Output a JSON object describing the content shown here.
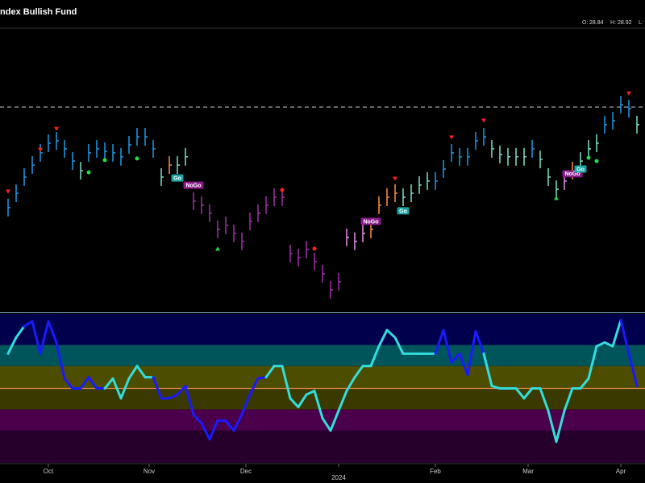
{
  "chart_data": {
    "type": "price-bars",
    "title": "Index Bullish Fund",
    "ohlc_legend": [
      {
        "label": "O:",
        "value": 28.84
      },
      {
        "label": "H:",
        "value": 28.92
      },
      {
        "label": "L:"
      }
    ],
    "xlim": [
      -1,
      79
    ],
    "xticks": [
      {
        "value": 5,
        "label": "Oct"
      },
      {
        "value": 17.5,
        "label": "Nov"
      },
      {
        "value": 29.5,
        "label": "Dec"
      },
      {
        "value": 41,
        "label": "2024"
      },
      {
        "value": 53,
        "label": "Feb"
      },
      {
        "value": 64.5,
        "label": "Mar"
      },
      {
        "value": 76,
        "label": "Apr"
      }
    ],
    "ylim": [
      20,
      32
    ],
    "reference_line": 28.64,
    "values": [
      24.36,
      24.97,
      25.66,
      26.17,
      26.69,
      27.1,
      27.2,
      26.86,
      26.34,
      25.93,
      26.69,
      26.86,
      26.76,
      26.69,
      26.52,
      27.03,
      27.37,
      27.37,
      26.86,
      25.66,
      26.17,
      26.17,
      26.52,
      24.63,
      24.46,
      24.12,
      23.43,
      23.6,
      23.26,
      22.92,
      23.77,
      24.12,
      24.46,
      24.8,
      24.8,
      22.4,
      22.23,
      22.57,
      22.06,
      21.54,
      20.86,
      21.2,
      23.09,
      22.92,
      23.26,
      23.43,
      24.46,
      24.8,
      24.97,
      24.8,
      24.97,
      25.32,
      25.49,
      25.49,
      26.0,
      26.69,
      26.52,
      26.52,
      27.2,
      27.37,
      26.86,
      26.62,
      26.52,
      26.52,
      26.52,
      26.86,
      26.41,
      25.66,
      25.14,
      25.49,
      25.93,
      26.34,
      26.86,
      27.1,
      27.89,
      28.06,
      28.74,
      28.57,
      27.89
    ],
    "bar_colors": [
      "#1e9be6",
      "#1e9be6",
      "#1e9be6",
      "#1e9be6",
      "#1e9be6",
      "#1e9be6",
      "#1e9be6",
      "#1e9be6",
      "#1e9be6",
      "#7fe0c8",
      "#1e9be6",
      "#1e9be6",
      "#1e9be6",
      "#1e9be6",
      "#1e9be6",
      "#1e9be6",
      "#1e9be6",
      "#1e9be6",
      "#1e9be6",
      "#7fe0c8",
      "#ff9040",
      "#7fe0c8",
      "#7fe0c8",
      "#a030a8",
      "#a030a8",
      "#a030a8",
      "#a030a8",
      "#a030a8",
      "#a030a8",
      "#a030a8",
      "#a030a8",
      "#a030a8",
      "#a030a8",
      "#a030a8",
      "#a030a8",
      "#a030a8",
      "#a030a8",
      "#a030a8",
      "#a030a8",
      "#a030a8",
      "#a030a8",
      "#a030a8",
      "#e890e8",
      "#e890e8",
      "#e890e8",
      "#ff9040",
      "#ff9040",
      "#ff9040",
      "#ff9040",
      "#7fe0c8",
      "#7fe0c8",
      "#7fe0c8",
      "#7fe0c8",
      "#1e9be6",
      "#1e9be6",
      "#1e9be6",
      "#1e9be6",
      "#1e9be6",
      "#1e9be6",
      "#1e9be6",
      "#7fe0c8",
      "#7fe0c8",
      "#7fe0c8",
      "#7fe0c8",
      "#7fe0c8",
      "#1e9be6",
      "#7fe0c8",
      "#7fe0c8",
      "#7fe0c8",
      "#e890e8",
      "#ff9040",
      "#7fe0c8",
      "#7fe0c8",
      "#7fe0c8",
      "#1e9be6",
      "#1e9be6",
      "#1e9be6",
      "#1e9be6",
      "#7fe0c8"
    ],
    "annotations": [
      {
        "label": "Go",
        "index": 21,
        "value": 25.62,
        "color": "#1aa3a3"
      },
      {
        "label": "NoGo",
        "index": 23,
        "value": 25.31,
        "color": "#8a1a8a"
      },
      {
        "label": "NoGo",
        "index": 45,
        "value": 23.77,
        "color": "#8a1a8a"
      },
      {
        "label": "Go",
        "index": 49,
        "value": 24.22,
        "color": "#1aa3a3"
      },
      {
        "label": "NoGo",
        "index": 70,
        "value": 25.8,
        "color": "#8a1a8a"
      },
      {
        "label": "Go",
        "index": 71,
        "value": 26.0,
        "color": "#1aa3a3"
      }
    ],
    "signals": [
      {
        "index": 0,
        "value": 25.04,
        "shape": "down",
        "color": "#ff2020"
      },
      {
        "index": 4,
        "value": 26.82,
        "shape": "down",
        "color": "#ff2020"
      },
      {
        "index": 6,
        "value": 27.71,
        "shape": "down",
        "color": "#ff2020"
      },
      {
        "index": 48,
        "value": 25.59,
        "shape": "down",
        "color": "#ff2020"
      },
      {
        "index": 55,
        "value": 27.34,
        "shape": "down",
        "color": "#ff2020"
      },
      {
        "index": 59,
        "value": 28.06,
        "shape": "down",
        "color": "#ff2020"
      },
      {
        "index": 77,
        "value": 29.22,
        "shape": "down",
        "color": "#ff2020"
      },
      {
        "index": 10,
        "value": 25.86,
        "shape": "dot",
        "color": "#20e040"
      },
      {
        "index": 12,
        "value": 26.38,
        "shape": "dot",
        "color": "#20e040"
      },
      {
        "index": 16,
        "value": 26.45,
        "shape": "dot",
        "color": "#20e040"
      },
      {
        "index": 72,
        "value": 26.48,
        "shape": "dot",
        "color": "#20e040"
      },
      {
        "index": 73,
        "value": 26.34,
        "shape": "dot",
        "color": "#20e040"
      },
      {
        "index": 34,
        "value": 25.11,
        "shape": "dot",
        "color": "#ff2020"
      },
      {
        "index": 38,
        "value": 22.61,
        "shape": "dot",
        "color": "#ff2020"
      },
      {
        "index": 26,
        "value": 22.61,
        "shape": "up",
        "color": "#20e040"
      },
      {
        "index": 68,
        "value": 24.77,
        "shape": "up",
        "color": "#20e040"
      }
    ],
    "oscillator": {
      "ylim": [
        -6,
        6
      ],
      "bands": [
        {
          "from": 6,
          "to": 3.5,
          "color": "#00004d"
        },
        {
          "from": 3.5,
          "to": 1.8,
          "color": "#00555a"
        },
        {
          "from": 1.8,
          "to": 0,
          "color": "#4d4d00"
        },
        {
          "from": 0,
          "to": -1.7,
          "color": "#3a3a00"
        },
        {
          "from": -1.7,
          "to": -3.4,
          "color": "#4a004a"
        },
        {
          "from": -3.4,
          "to": -6,
          "color": "#26002a"
        }
      ],
      "zero_line_color": "#e08a40",
      "values": [
        2.8,
        4.1,
        5.0,
        5.4,
        2.8,
        5.4,
        3.7,
        0.8,
        0,
        0,
        0.9,
        0,
        0,
        0.8,
        -0.8,
        0.8,
        1.8,
        0.9,
        0.9,
        -0.8,
        -0.8,
        -0.5,
        0.2,
        -2.1,
        -2.8,
        -4.1,
        -2.6,
        -2.6,
        -3.4,
        -2.1,
        -0.5,
        0.8,
        0.9,
        1.8,
        1.8,
        -0.8,
        -1.5,
        -0.5,
        -0.2,
        -2.4,
        -3.4,
        -1.8,
        -0.2,
        0.9,
        1.8,
        1.8,
        3.4,
        4.7,
        4.1,
        2.8,
        2.8,
        2.8,
        2.8,
        2.8,
        4.7,
        2.1,
        2.8,
        1.1,
        4.6,
        2.8,
        0.2,
        0,
        0,
        0,
        -0.8,
        0,
        0,
        -1.8,
        -4.3,
        -1.8,
        0,
        0,
        0.8,
        3.4,
        3.7,
        3.4,
        5.5,
        2.8,
        0.2
      ],
      "point_colors": [
        "#33dddd",
        "#33dddd",
        "#33dddd",
        "#1a1aff",
        "#1a1aff",
        "#1a1aff",
        "#1a1aff",
        "#1a1aff",
        "#1a1aff",
        "#1a1aff",
        "#1a1aff",
        "#1a1aff",
        "#1a1aff",
        "#33dddd",
        "#33dddd",
        "#33dddd",
        "#33dddd",
        "#33dddd",
        "#33dddd",
        "#1a1aff",
        "#1a1aff",
        "#1a1aff",
        "#1a1aff",
        "#1a1aff",
        "#1a1aff",
        "#1a1aff",
        "#1a1aff",
        "#1a1aff",
        "#1a1aff",
        "#1a1aff",
        "#1a1aff",
        "#1a1aff",
        "#1a1aff",
        "#33dddd",
        "#33dddd",
        "#33dddd",
        "#33dddd",
        "#33dddd",
        "#33dddd",
        "#33dddd",
        "#33dddd",
        "#33dddd",
        "#33dddd",
        "#33dddd",
        "#33dddd",
        "#33dddd",
        "#33dddd",
        "#33dddd",
        "#33dddd",
        "#33dddd",
        "#33dddd",
        "#33dddd",
        "#33dddd",
        "#33dddd",
        "#1a1aff",
        "#1a1aff",
        "#1a1aff",
        "#1a1aff",
        "#1a1aff",
        "#1a1aff",
        "#33dddd",
        "#33dddd",
        "#33dddd",
        "#33dddd",
        "#33dddd",
        "#33dddd",
        "#33dddd",
        "#33dddd",
        "#33dddd",
        "#33dddd",
        "#33dddd",
        "#33dddd",
        "#33dddd",
        "#33dddd",
        "#33dddd",
        "#33dddd",
        "#33dddd",
        "#1a1aff",
        "#1a1aff"
      ]
    }
  }
}
